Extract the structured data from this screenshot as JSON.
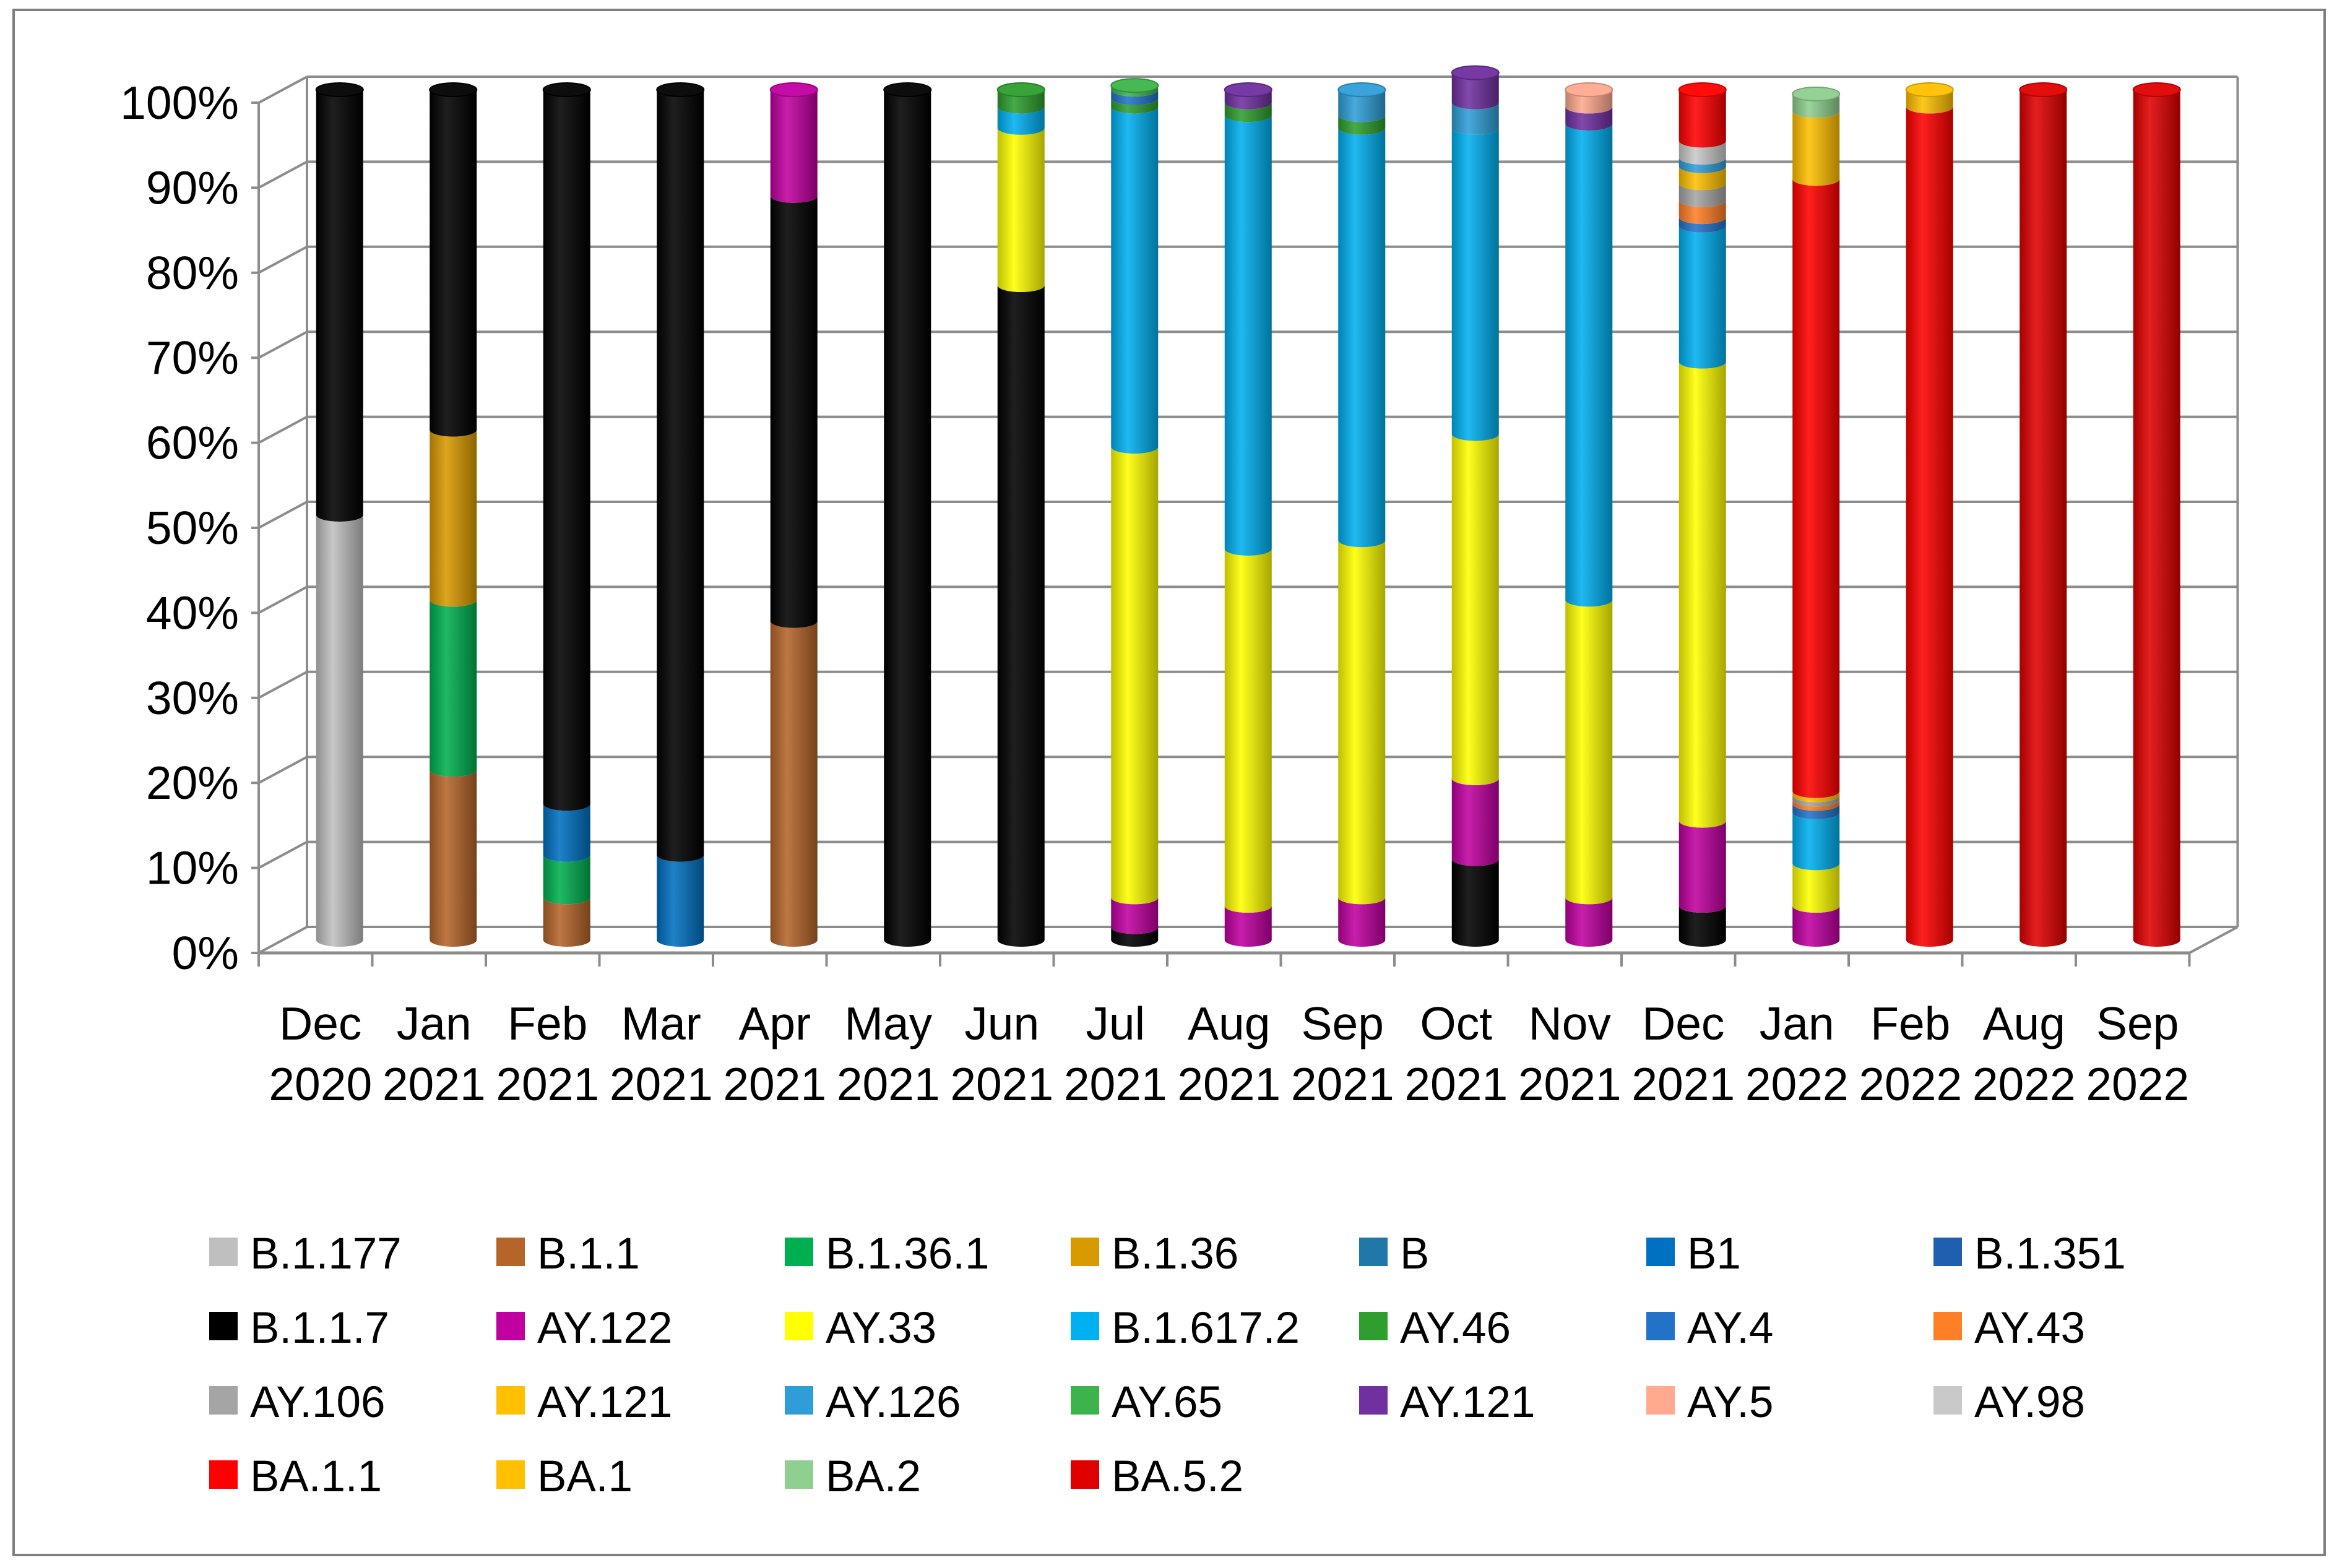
{
  "chart_data": {
    "type": "bar",
    "stacked": true,
    "title": "",
    "xlabel": "",
    "ylabel": "",
    "ylim": [
      0,
      100
    ],
    "y_ticks": [
      "0%",
      "10%",
      "20%",
      "30%",
      "40%",
      "50%",
      "60%",
      "70%",
      "80%",
      "90%",
      "100%"
    ],
    "grid": true,
    "legend_position": "bottom",
    "categories": [
      {
        "month": "Dec",
        "year": "2020"
      },
      {
        "month": "Jan",
        "year": "2021"
      },
      {
        "month": "Feb",
        "year": "2021"
      },
      {
        "month": "Mar",
        "year": "2021"
      },
      {
        "month": "Apr",
        "year": "2021"
      },
      {
        "month": "May",
        "year": "2021"
      },
      {
        "month": "Jun",
        "year": "2021"
      },
      {
        "month": "Jul",
        "year": "2021"
      },
      {
        "month": "Aug",
        "year": "2021"
      },
      {
        "month": "Sep",
        "year": "2021"
      },
      {
        "month": "Oct",
        "year": "2021"
      },
      {
        "month": "Nov",
        "year": "2021"
      },
      {
        "month": "Dec",
        "year": "2021"
      },
      {
        "month": "Jan",
        "year": "2022"
      },
      {
        "month": "Feb",
        "year": "2022"
      },
      {
        "month": "Aug",
        "year": "2022"
      },
      {
        "month": "Sep",
        "year": "2022"
      }
    ],
    "series": [
      {
        "name": "B.1.177",
        "color": "#BFBFBF",
        "values": [
          50,
          0,
          0,
          0,
          0,
          0,
          0,
          0,
          0,
          0,
          0,
          0,
          0,
          0,
          0,
          0,
          0
        ]
      },
      {
        "name": "B.1.1",
        "color": "#B5652A",
        "values": [
          0,
          20,
          5,
          0,
          37.5,
          0,
          0,
          0,
          0,
          0,
          0,
          0,
          0,
          0,
          0,
          0,
          0
        ]
      },
      {
        "name": "B.1.36.1",
        "color": "#00B050",
        "values": [
          0,
          20,
          5,
          0,
          0,
          0,
          0,
          0,
          0,
          0,
          0,
          0,
          0,
          0,
          0,
          0,
          0
        ]
      },
      {
        "name": "B.1.36",
        "color": "#D99A00",
        "values": [
          0,
          20,
          0,
          0,
          0,
          0,
          0,
          0,
          0,
          0,
          0,
          0,
          0,
          0,
          0,
          0,
          0
        ]
      },
      {
        "name": "B",
        "color": "#1F78A8",
        "values": [
          0,
          0,
          0,
          0,
          0,
          0,
          0,
          0,
          0,
          0,
          0,
          0,
          0,
          0,
          0,
          0,
          0
        ]
      },
      {
        "name": "B1",
        "color": "#0070C0",
        "values": [
          0,
          0,
          6,
          10,
          0,
          0,
          0,
          0,
          0,
          0,
          0,
          0,
          0,
          0,
          0,
          0,
          0
        ]
      },
      {
        "name": "B.1.351",
        "color": "#1F5FAF",
        "values": [
          0,
          0,
          0,
          0,
          0,
          0,
          0,
          0,
          0,
          0,
          0,
          0,
          0,
          0,
          0,
          0,
          0
        ]
      },
      {
        "name": "B.1.1.7",
        "color": "#000000",
        "values": [
          50,
          40,
          84,
          90,
          50,
          100,
          77,
          1.5,
          0,
          0,
          9.5,
          0,
          4,
          0,
          0,
          0,
          0
        ]
      },
      {
        "name": "AY.122",
        "color": "#C000A0",
        "values": [
          0,
          0,
          0,
          0,
          12.5,
          0,
          0,
          3.5,
          4,
          5,
          9.5,
          5,
          10,
          4,
          0,
          0,
          0
        ]
      },
      {
        "name": "AY.33",
        "color": "#FFFF00",
        "values": [
          0,
          0,
          0,
          0,
          0,
          0,
          18.5,
          53,
          42,
          42,
          40.5,
          35,
          54,
          5,
          0,
          0,
          0
        ]
      },
      {
        "name": "B.1.617.2",
        "color": "#00B0F0",
        "values": [
          0,
          0,
          0,
          0,
          0,
          0,
          2.5,
          40,
          51,
          48.5,
          36,
          56,
          16,
          6,
          0,
          0,
          0
        ]
      },
      {
        "name": "AY.46",
        "color": "#2E9E2E",
        "values": [
          0,
          0,
          0,
          0,
          0,
          0,
          2,
          1,
          1.5,
          1.5,
          0,
          0,
          0,
          0,
          0,
          0,
          0
        ]
      },
      {
        "name": "AY.4",
        "color": "#2272C8",
        "values": [
          0,
          0,
          0,
          0,
          0,
          0,
          0,
          1,
          0,
          0,
          0,
          0,
          1,
          1,
          0,
          0,
          0
        ]
      },
      {
        "name": "AY.43",
        "color": "#FF7F27",
        "values": [
          0,
          0,
          0,
          0,
          0,
          0,
          0,
          0,
          0,
          0,
          0,
          0,
          2,
          0.5,
          0,
          0,
          0
        ]
      },
      {
        "name": "AY.106",
        "color": "#A5A5A5",
        "values": [
          0,
          0,
          0,
          0,
          0,
          0,
          0,
          0,
          0,
          0,
          0,
          0,
          2,
          0.5,
          0,
          0,
          0
        ]
      },
      {
        "name": "AY.121",
        "color": "#FFC000",
        "values": [
          0,
          0,
          0,
          0,
          0,
          0,
          0,
          0,
          0,
          0,
          0,
          0,
          2,
          0.5,
          0,
          0,
          0
        ]
      },
      {
        "name": "AY.126",
        "color": "#2F9ED8",
        "values": [
          0,
          0,
          0,
          0,
          0,
          0,
          0,
          0,
          0,
          3,
          3,
          0,
          1,
          0,
          0,
          0,
          0
        ]
      },
      {
        "name": "AY.65",
        "color": "#3CB44B",
        "values": [
          0,
          0,
          0,
          0,
          0,
          0,
          0,
          0.5,
          0,
          0,
          0,
          0,
          0,
          0,
          0,
          0,
          0
        ]
      },
      {
        "name": "AY.121",
        "color": "#7030A0",
        "values": [
          0,
          0,
          0,
          0,
          0,
          0,
          0,
          0,
          1.5,
          0,
          3.5,
          2,
          0,
          0,
          0,
          0,
          0
        ]
      },
      {
        "name": "AY.5",
        "color": "#FFA98F",
        "values": [
          0,
          0,
          0,
          0,
          0,
          0,
          0,
          0,
          0,
          0,
          0,
          2,
          0,
          0,
          0,
          0,
          0
        ]
      },
      {
        "name": "AY.98",
        "color": "#C9C9C9",
        "values": [
          0,
          0,
          0,
          0,
          0,
          0,
          0,
          0,
          0,
          0,
          0,
          0,
          2,
          0,
          0,
          0,
          0
        ]
      },
      {
        "name": "BA.1.1",
        "color": "#FF0000",
        "values": [
          0,
          0,
          0,
          0,
          0,
          0,
          0,
          0,
          0,
          0,
          0,
          0,
          6,
          72,
          98,
          0,
          0
        ]
      },
      {
        "name": "BA.1",
        "color": "#FFC000",
        "values": [
          0,
          0,
          0,
          0,
          0,
          0,
          0,
          0,
          0,
          0,
          0,
          0,
          0,
          8,
          2,
          0,
          0
        ]
      },
      {
        "name": "BA.2",
        "color": "#8FCF8F",
        "values": [
          0,
          0,
          0,
          0,
          0,
          0,
          0,
          0,
          0,
          0,
          0,
          0,
          0,
          2,
          0,
          0,
          0
        ]
      },
      {
        "name": "BA.5.2",
        "color": "#E00000",
        "values": [
          0,
          0,
          0,
          0,
          0,
          0,
          0,
          0,
          0,
          0,
          0,
          0,
          0,
          0,
          0,
          100,
          100
        ]
      }
    ]
  }
}
